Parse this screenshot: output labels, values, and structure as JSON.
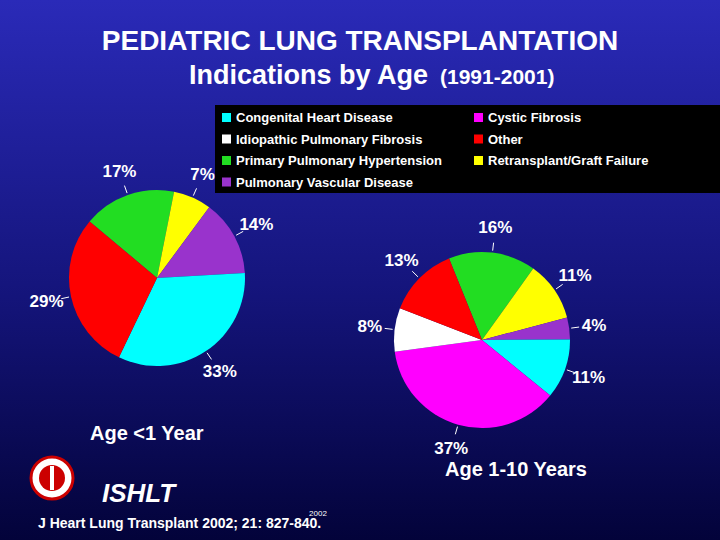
{
  "header": {
    "title": "PEDIATRIC LUNG TRANSPLANTATION",
    "subtitle": "Indications by Age",
    "years": "(1991-2001)"
  },
  "legend_entries": [
    {
      "name": "Congenital Heart Disease",
      "color": "#00ffff"
    },
    {
      "name": "Cystic Fibrosis",
      "color": "#ff00ff"
    },
    {
      "name": "Idiopathic Pulmonary Fibrosis",
      "color": "#ffffff"
    },
    {
      "name": "Other",
      "color": "#ff0000"
    },
    {
      "name": "Primary Pulmonary Hypertension",
      "color": "#22dd22"
    },
    {
      "name": "Retransplant/Graft Failure",
      "color": "#ffff00"
    },
    {
      "name": "Pulmonary Vascular Disease",
      "color": "#9933cc"
    }
  ],
  "chart_data": [
    {
      "type": "pie",
      "title": "Age <1 Year",
      "categories": [
        "Primary Pulmonary Hypertension",
        "Retransplant/Graft Failure",
        "Pulmonary Vascular Disease",
        "Congenital Heart Disease",
        "Other"
      ],
      "values": [
        17,
        7,
        14,
        33,
        29
      ],
      "value_labels": [
        "17%",
        "7%",
        "14%",
        "33%",
        "29%"
      ],
      "data_labels": true
    },
    {
      "type": "pie",
      "title": "Age 1-10 Years",
      "categories": [
        "Primary Pulmonary Hypertension",
        "Retransplant/Graft Failure",
        "Pulmonary Vascular Disease",
        "Congenital Heart Disease",
        "Cystic Fibrosis",
        "Idiopathic Pulmonary Fibrosis",
        "Other"
      ],
      "values": [
        16,
        11,
        4,
        11,
        37,
        8,
        13
      ],
      "value_labels": [
        "16%",
        "11%",
        "4%",
        "11%",
        "37%",
        "8%",
        "13%"
      ],
      "data_labels": true
    }
  ],
  "footer": {
    "logo_text": "ISHLT",
    "source": "J Heart Lung Transplant 2002; 21: 827-840.",
    "stamp": "2002"
  }
}
